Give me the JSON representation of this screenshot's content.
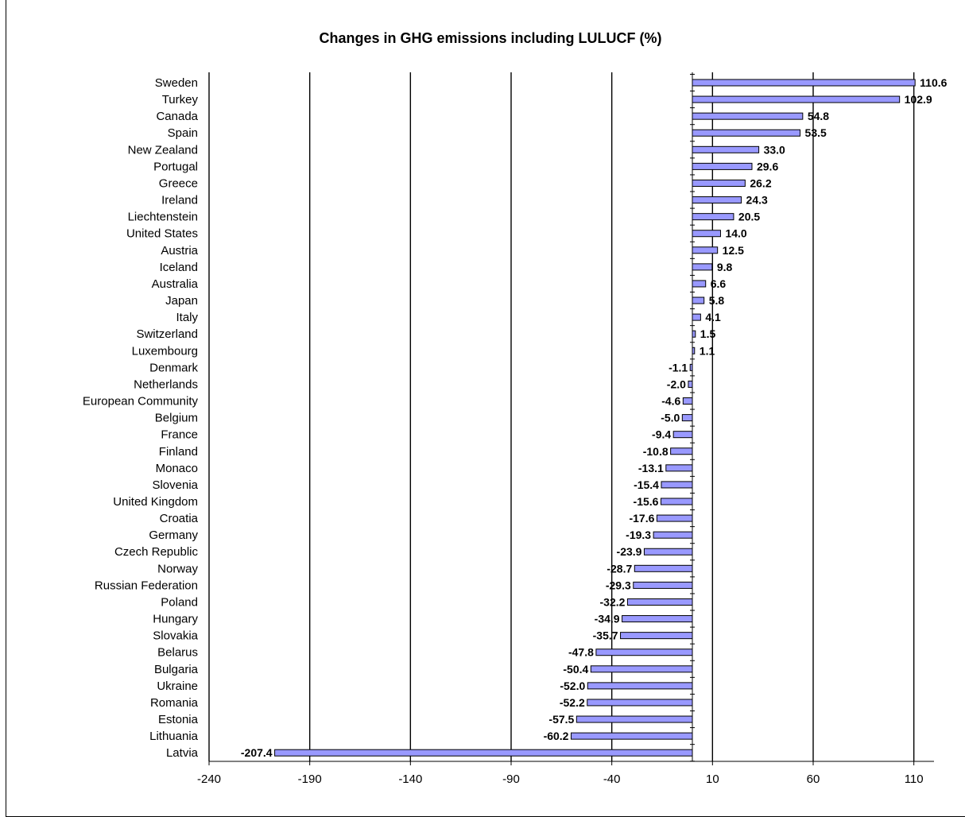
{
  "chart_data": {
    "type": "bar",
    "orientation": "horizontal",
    "title": "Changes in GHG emissions including LULUCF (%)",
    "xlabel": "",
    "ylabel": "",
    "xlim": [
      -240,
      120
    ],
    "xticks": [
      -240,
      -190,
      -140,
      -90,
      -40,
      10,
      60,
      110
    ],
    "xtick_labels": [
      "-240",
      "-190",
      "-140",
      "-90",
      "-40",
      "10",
      "60",
      "110"
    ],
    "grid": "vertical",
    "bar_color": "#9999ff",
    "categories": [
      "Sweden",
      "Turkey",
      "Canada",
      "Spain",
      "New Zealand",
      "Portugal",
      "Greece",
      "Ireland",
      "Liechtenstein",
      "United States",
      "Austria",
      "Iceland",
      "Australia",
      "Japan",
      "Italy",
      "Switzerland",
      "Luxembourg",
      "Denmark",
      "Netherlands",
      "European Community",
      "Belgium",
      "France",
      "Finland",
      "Monaco",
      "Slovenia",
      "United Kingdom",
      "Croatia",
      "Germany",
      "Czech Republic",
      "Norway",
      "Russian Federation",
      "Poland",
      "Hungary",
      "Slovakia",
      "Belarus",
      "Bulgaria",
      "Ukraine",
      "Romania",
      "Estonia",
      "Lithuania",
      "Latvia"
    ],
    "values": [
      110.6,
      102.9,
      54.8,
      53.5,
      33.0,
      29.6,
      26.2,
      24.3,
      20.5,
      14.0,
      12.5,
      9.8,
      6.6,
      5.8,
      4.1,
      1.5,
      1.1,
      -1.1,
      -2.0,
      -4.6,
      -5.0,
      -9.4,
      -10.8,
      -13.1,
      -15.4,
      -15.6,
      -17.6,
      -19.3,
      -23.9,
      -28.7,
      -29.3,
      -32.2,
      -34.9,
      -35.7,
      -47.8,
      -50.4,
      -52.0,
      -52.2,
      -57.5,
      -60.2,
      -207.4
    ],
    "value_labels": [
      "110.6",
      "102.9",
      "54.8",
      "53.5",
      "33.0",
      "29.6",
      "26.2",
      "24.3",
      "20.5",
      "14.0",
      "12.5",
      "9.8",
      "6.6",
      "5.8",
      "4.1",
      "1.5",
      "1.1",
      "-1.1",
      "-2.0",
      "-4.6",
      "-5.0",
      "-9.4",
      "-10.8",
      "-13.1",
      "-15.4",
      "-15.6",
      "-17.6",
      "-19.3",
      "-23.9",
      "-28.7",
      "-29.3",
      "-32.2",
      "-34.9",
      "-35.7",
      "-47.8",
      "-50.4",
      "-52.0",
      "-52.2",
      "-57.5",
      "-60.2",
      "-207.4"
    ]
  }
}
